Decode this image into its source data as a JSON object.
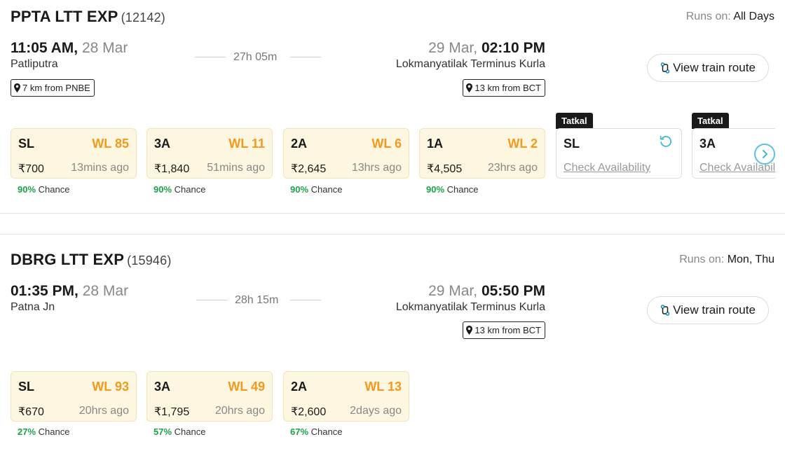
{
  "trains": [
    {
      "name": "PPTA LTT EXP",
      "number": "(12142)",
      "runs_label": "Runs on:",
      "runs_days": "All Days",
      "dep_time": "11:05 AM,",
      "dep_date": "28 Mar",
      "dep_station": "Patliputra",
      "dep_distance": "7 km from PNBE",
      "duration": "27h 05m",
      "arr_date": "29 Mar,",
      "arr_time": "02:10 PM",
      "arr_station": "Lokmanyatilak Terminus Kurla",
      "arr_distance": "13 km from BCT",
      "route_button": "View train route",
      "classes": [
        {
          "name": "SL",
          "status": "WL 85",
          "price": "₹700",
          "updated": "13mins ago",
          "chance_pct": "90%",
          "chance_label": "Chance"
        },
        {
          "name": "3A",
          "status": "WL 11",
          "price": "₹1,840",
          "updated": "51mins ago",
          "chance_pct": "90%",
          "chance_label": "Chance"
        },
        {
          "name": "2A",
          "status": "WL 6",
          "price": "₹2,645",
          "updated": "13hrs ago",
          "chance_pct": "90%",
          "chance_label": "Chance"
        },
        {
          "name": "1A",
          "status": "WL 2",
          "price": "₹4,505",
          "updated": "23hrs ago",
          "chance_pct": "90%",
          "chance_label": "Chance"
        }
      ],
      "tatkal_classes": [
        {
          "tag": "Tatkal",
          "name": "SL",
          "action": "Check Availability"
        },
        {
          "tag": "Tatkal",
          "name": "3A",
          "action": "Check Availability"
        }
      ]
    },
    {
      "name": "DBRG LTT EXP",
      "number": "(15946)",
      "runs_label": "Runs on:",
      "runs_days": "Mon, Thu",
      "dep_time": "01:35 PM,",
      "dep_date": "28 Mar",
      "dep_station": "Patna Jn",
      "duration": "28h 15m",
      "arr_date": "29 Mar,",
      "arr_time": "05:50 PM",
      "arr_station": "Lokmanyatilak Terminus Kurla",
      "arr_distance": "13 km from BCT",
      "route_button": "View train route",
      "classes": [
        {
          "name": "SL",
          "status": "WL 93",
          "price": "₹670",
          "updated": "20hrs ago",
          "chance_pct": "27%",
          "chance_label": "Chance"
        },
        {
          "name": "3A",
          "status": "WL 49",
          "price": "₹1,795",
          "updated": "20hrs ago",
          "chance_pct": "57%",
          "chance_label": "Chance"
        },
        {
          "name": "2A",
          "status": "WL 13",
          "price": "₹2,600",
          "updated": "2days ago",
          "chance_pct": "67%",
          "chance_label": "Chance"
        }
      ]
    }
  ],
  "icons": {
    "pin": "map-pin-icon",
    "route": "route-icon",
    "refresh": "refresh-icon",
    "next": "chevron-right-icon"
  },
  "colors": {
    "waitlist": "#f39a1e",
    "chance": "#1aa34a",
    "class_bg": "#fdf6e1",
    "next_accent": "#5bc4dc"
  }
}
